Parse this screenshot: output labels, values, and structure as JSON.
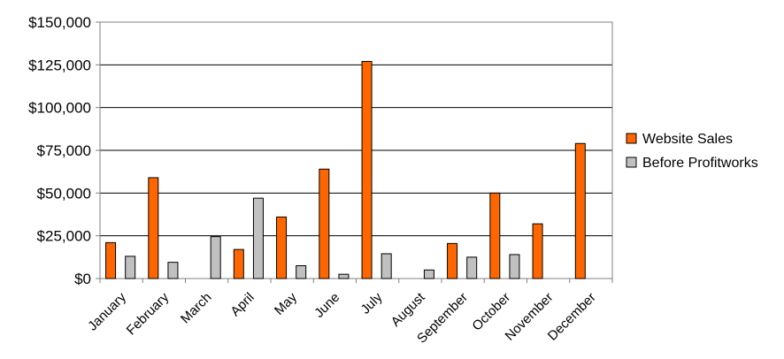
{
  "chart_data": {
    "type": "bar",
    "categories": [
      "January",
      "February",
      "March",
      "April",
      "May",
      "June",
      "July",
      "August",
      "September",
      "October",
      "November",
      "December"
    ],
    "series": [
      {
        "name": "Website Sales",
        "color": "#ff6600",
        "values": [
          21000,
          59000,
          null,
          17000,
          36000,
          64000,
          127000,
          null,
          20500,
          50000,
          32000,
          79000
        ]
      },
      {
        "name": "Before Profitworks",
        "color": "#c0c0c0",
        "values": [
          13000,
          9500,
          24500,
          47000,
          7500,
          2500,
          14500,
          5000,
          12500,
          14000,
          null,
          null
        ]
      }
    ],
    "ylim": [
      0,
      150000
    ],
    "yticks": [
      0,
      25000,
      50000,
      75000,
      100000,
      125000,
      150000
    ],
    "ytick_labels": [
      "$0",
      "$25,000",
      "$50,000",
      "$75,000",
      "$100,000",
      "$125,000",
      "$150,000"
    ],
    "grid": true,
    "legend_position": "right",
    "title": "",
    "xlabel": "",
    "ylabel": ""
  }
}
